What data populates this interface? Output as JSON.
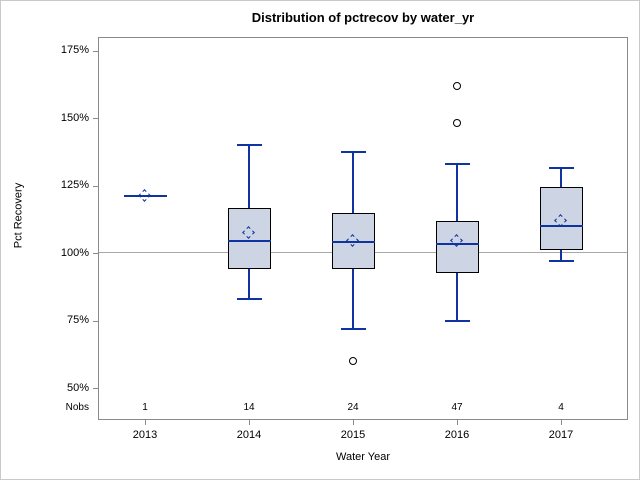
{
  "figure": {
    "title": "Distribution of pctrecov by water_yr"
  },
  "axes": {
    "y_label": "Pct Recovery",
    "x_label": "Water Year",
    "nobs_label": "Nobs",
    "y_ticks": [
      "175%",
      "150%",
      "125%",
      "100%",
      "75%",
      "50%"
    ]
  },
  "chart_data": {
    "type": "boxplot",
    "title": "Distribution of pctrecov by water_yr",
    "xlabel": "Water Year",
    "ylabel": "Pct Recovery",
    "y_unit": "percent",
    "y_tick_values": [
      175,
      150,
      125,
      100,
      75,
      50
    ],
    "ylim": [
      45,
      182
    ],
    "reference_line": 100,
    "grid": "single horizontal reference line at 100%",
    "categories": [
      "2013",
      "2014",
      "2015",
      "2016",
      "2017"
    ],
    "nobs": [
      1,
      14,
      24,
      47,
      4
    ],
    "series": [
      {
        "category": "2013",
        "n": 1,
        "low": 121,
        "q1": 121,
        "median": 121,
        "q3": 121,
        "high": 121,
        "mean": 121,
        "outliers": []
      },
      {
        "category": "2014",
        "n": 14,
        "low": 83,
        "q1": 94,
        "median": 104.5,
        "q3": 116.5,
        "high": 140,
        "mean": 107.5,
        "outliers": []
      },
      {
        "category": "2015",
        "n": 24,
        "low": 72,
        "q1": 94,
        "median": 104,
        "q3": 115,
        "high": 137.5,
        "mean": 104.5,
        "outliers": [
          60
        ]
      },
      {
        "category": "2016",
        "n": 47,
        "low": 75,
        "q1": 92.5,
        "median": 103.5,
        "q3": 112,
        "high": 133,
        "mean": 104.5,
        "outliers": [
          162,
          148
        ]
      },
      {
        "category": "2017",
        "n": 4,
        "low": 97,
        "q1": 101,
        "median": 110,
        "q3": 124.5,
        "high": 131.5,
        "mean": 112,
        "outliers": []
      }
    ],
    "colors": {
      "box_fill": "#cdd5e5",
      "box_border": "#000000",
      "line": "#0f33a0",
      "outlier": "#000000",
      "grid": "#a8a8a8",
      "frame": "#8a8a8a",
      "figure_border": "#c9c9c9",
      "text": "#000000"
    }
  }
}
